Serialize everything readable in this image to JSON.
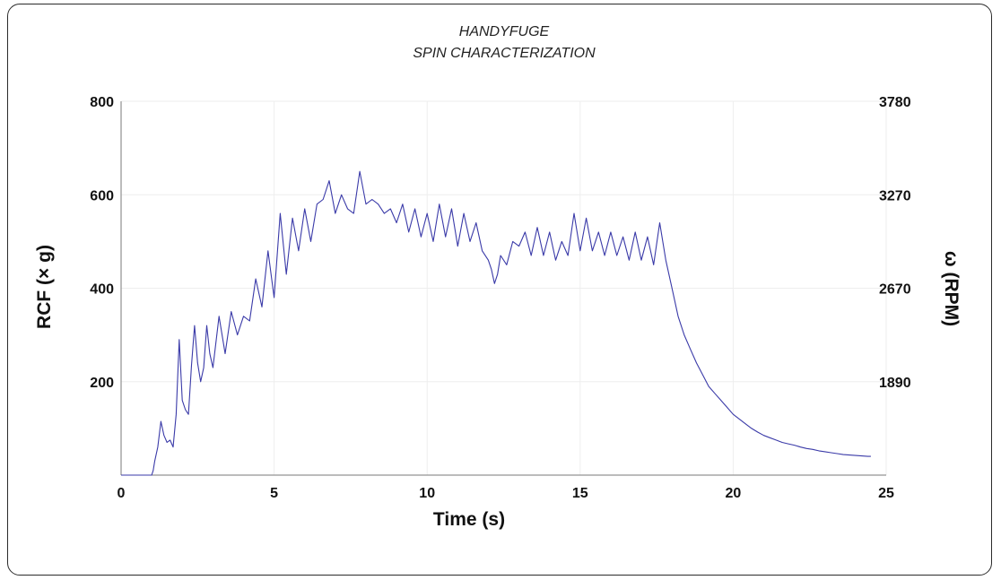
{
  "chart_data": {
    "type": "line",
    "title": "HANDYFUGE",
    "subtitle": "SPIN CHARACTERIZATION",
    "xlabel": "Time (s)",
    "ylabel": "RCF (× g)",
    "y2label": "ω (RPM)",
    "xlim": [
      0,
      25
    ],
    "ylim": [
      0,
      800
    ],
    "x_ticks": [
      0,
      5,
      10,
      15,
      20,
      25
    ],
    "y_ticks": [
      200,
      400,
      600,
      800
    ],
    "y2_ticks": [
      {
        "rcf": 200,
        "label": "1890"
      },
      {
        "rcf": 400,
        "label": "2670"
      },
      {
        "rcf": 600,
        "label": "3270"
      },
      {
        "rcf": 800,
        "label": "3780"
      }
    ],
    "grid": true,
    "line_color": "#3a3aa8",
    "x": [
      0,
      1.0,
      1.05,
      1.1,
      1.2,
      1.3,
      1.4,
      1.5,
      1.6,
      1.7,
      1.8,
      1.9,
      2.0,
      2.1,
      2.2,
      2.3,
      2.4,
      2.5,
      2.6,
      2.7,
      2.8,
      2.9,
      3.0,
      3.2,
      3.4,
      3.6,
      3.8,
      4.0,
      4.2,
      4.4,
      4.6,
      4.8,
      5.0,
      5.2,
      5.4,
      5.6,
      5.8,
      6.0,
      6.2,
      6.4,
      6.6,
      6.8,
      7.0,
      7.2,
      7.4,
      7.6,
      7.8,
      8.0,
      8.2,
      8.4,
      8.6,
      8.8,
      9.0,
      9.2,
      9.4,
      9.6,
      9.8,
      10.0,
      10.2,
      10.4,
      10.6,
      10.8,
      11.0,
      11.2,
      11.4,
      11.6,
      11.8,
      12.0,
      12.1,
      12.2,
      12.3,
      12.4,
      12.6,
      12.8,
      13.0,
      13.2,
      13.4,
      13.6,
      13.8,
      14.0,
      14.2,
      14.4,
      14.6,
      14.8,
      15.0,
      15.2,
      15.4,
      15.6,
      15.8,
      16.0,
      16.2,
      16.4,
      16.6,
      16.8,
      17.0,
      17.2,
      17.4,
      17.6,
      17.8,
      18.0,
      18.2,
      18.4,
      18.6,
      18.8,
      19.0,
      19.2,
      19.4,
      19.6,
      19.8,
      20.0,
      20.2,
      20.4,
      20.6,
      20.8,
      21.0,
      21.2,
      21.4,
      21.6,
      21.8,
      22.0,
      22.2,
      22.4,
      22.6,
      22.8,
      23.0,
      23.2,
      23.4,
      23.6,
      23.8,
      24.0,
      24.2,
      24.4,
      24.5
    ],
    "values": [
      0,
      0,
      10,
      30,
      60,
      115,
      85,
      70,
      75,
      60,
      130,
      290,
      160,
      140,
      130,
      235,
      320,
      240,
      200,
      230,
      320,
      260,
      230,
      340,
      260,
      350,
      300,
      340,
      330,
      420,
      360,
      480,
      380,
      560,
      430,
      550,
      480,
      570,
      500,
      580,
      590,
      630,
      560,
      600,
      570,
      560,
      650,
      580,
      590,
      580,
      560,
      570,
      540,
      580,
      520,
      570,
      510,
      560,
      500,
      580,
      510,
      570,
      490,
      560,
      500,
      540,
      480,
      460,
      440,
      410,
      430,
      470,
      450,
      500,
      490,
      520,
      470,
      530,
      470,
      520,
      460,
      500,
      470,
      560,
      480,
      550,
      480,
      520,
      470,
      520,
      470,
      510,
      460,
      520,
      460,
      510,
      450,
      540,
      460,
      400,
      340,
      300,
      270,
      240,
      215,
      190,
      175,
      160,
      145,
      130,
      120,
      110,
      100,
      92,
      85,
      80,
      75,
      70,
      67,
      64,
      60,
      57,
      55,
      52,
      50,
      48,
      46,
      44,
      43,
      42,
      41,
      40,
      40
    ]
  }
}
